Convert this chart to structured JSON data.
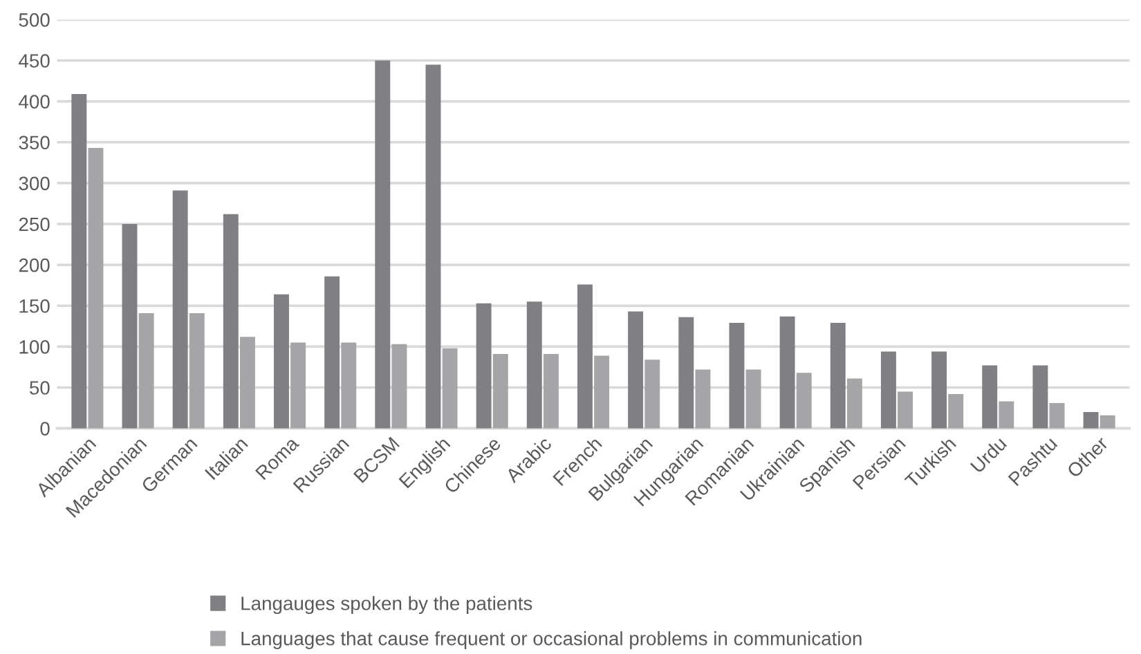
{
  "chart_data": {
    "type": "bar",
    "categories": [
      "Albanian",
      "Macedonian",
      "German",
      "Italian",
      "Roma",
      "Russian",
      "BCSM",
      "English",
      "Chinese",
      "Arabic",
      "French",
      "Bulgarian",
      "Hungarian",
      "Romanian",
      "Ukrainian",
      "Spanish",
      "Persian",
      "Turkish",
      "Urdu",
      "Pashtu",
      "Other"
    ],
    "series": [
      {
        "name": "Langauges spoken by the patients",
        "color": "#808084",
        "values": [
          409,
          250,
          291,
          262,
          164,
          186,
          450,
          445,
          153,
          155,
          176,
          143,
          136,
          129,
          137,
          129,
          94,
          94,
          77,
          77,
          20
        ]
      },
      {
        "name": "Languages that cause frequent or occasional problems in communication",
        "color": "#a5a5a8",
        "values": [
          343,
          141,
          141,
          112,
          105,
          105,
          103,
          98,
          91,
          91,
          89,
          84,
          72,
          72,
          68,
          61,
          45,
          42,
          33,
          31,
          16
        ]
      }
    ],
    "ylim": [
      0,
      500
    ],
    "yticks": [
      0,
      50,
      100,
      150,
      200,
      250,
      300,
      350,
      400,
      450,
      500
    ],
    "grid": "y",
    "legend": "bottom"
  }
}
